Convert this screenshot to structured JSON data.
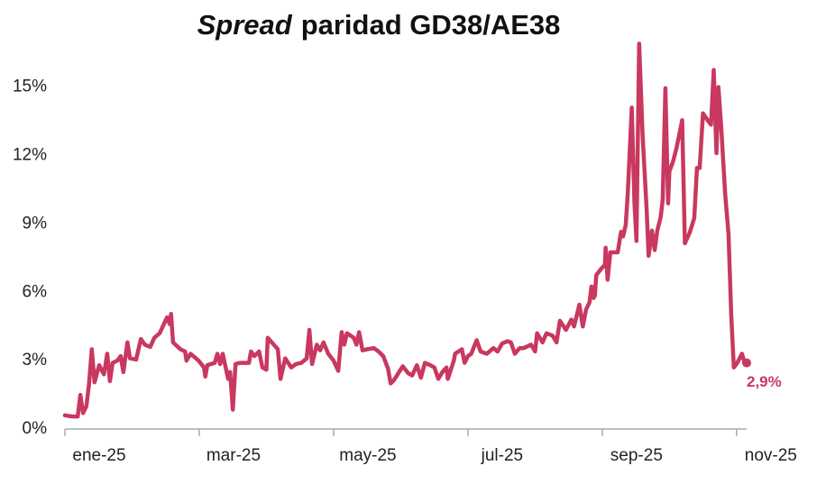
{
  "chart_data": {
    "type": "line",
    "title": {
      "emphasis": "Spread",
      "rest": "paridad GD38/AE38"
    },
    "x": [
      0,
      0.11,
      0.19,
      0.23,
      0.27,
      0.32,
      0.36,
      0.4,
      0.44,
      0.51,
      0.58,
      0.63,
      0.67,
      0.71,
      0.78,
      0.83,
      0.87,
      0.93,
      0.97,
      1.06,
      1.13,
      1.19,
      1.27,
      1.33,
      1.41,
      1.52,
      1.56,
      1.58,
      1.61,
      1.72,
      1.79,
      1.81,
      1.87,
      1.99,
      2.07,
      2.09,
      2.12,
      2.23,
      2.27,
      2.31,
      2.35,
      2.43,
      2.46,
      2.5,
      2.54,
      2.6,
      2.74,
      2.77,
      2.82,
      2.89,
      2.94,
      3.0,
      3.02,
      3.11,
      3.17,
      3.21,
      3.28,
      3.37,
      3.44,
      3.52,
      3.6,
      3.64,
      3.68,
      3.75,
      3.8,
      3.85,
      3.92,
      4.0,
      4.07,
      4.12,
      4.16,
      4.2,
      4.3,
      4.34,
      4.38,
      4.43,
      4.5,
      4.6,
      4.67,
      4.74,
      4.81,
      4.85,
      4.9,
      5.03,
      5.11,
      5.17,
      5.24,
      5.3,
      5.36,
      5.44,
      5.5,
      5.56,
      5.62,
      5.68,
      5.7,
      5.79,
      5.81,
      5.91,
      5.95,
      6.0,
      6.05,
      6.13,
      6.19,
      6.28,
      6.38,
      6.44,
      6.51,
      6.59,
      6.64,
      6.7,
      6.77,
      6.83,
      6.94,
      7.0,
      7.03,
      7.11,
      7.17,
      7.26,
      7.32,
      7.37,
      7.46,
      7.54,
      7.58,
      7.66,
      7.71,
      7.76,
      7.81,
      7.84,
      7.87,
      7.89,
      7.91,
      7.99,
      8.04,
      8.05,
      8.08,
      8.12,
      8.23,
      8.28,
      8.31,
      8.35,
      8.38,
      8.44,
      8.48,
      8.51,
      8.55,
      8.6,
      8.66,
      8.69,
      8.74,
      8.78,
      8.82,
      8.87,
      8.9,
      8.94,
      8.98,
      9.0,
      9.05,
      9.1,
      9.15,
      9.19,
      9.23,
      9.3,
      9.37,
      9.41,
      9.45,
      9.5,
      9.58,
      9.62,
      9.66,
      9.7,
      9.73,
      9.77,
      9.83,
      9.88,
      9.92,
      9.96,
      10.01,
      10.08,
      10.12,
      10.15
    ],
    "series": [
      {
        "name": "Spread",
        "color": "#c9385f",
        "values": [
          0.6,
          0.55,
          0.55,
          1.5,
          0.7,
          1.0,
          2.0,
          3.5,
          2.05,
          2.8,
          2.4,
          3.3,
          2.1,
          2.9,
          3.0,
          3.2,
          2.5,
          3.8,
          3.1,
          3.05,
          3.95,
          3.7,
          3.6,
          4.0,
          4.2,
          4.9,
          4.6,
          5.05,
          3.8,
          3.5,
          3.4,
          3.0,
          3.3,
          3.0,
          2.7,
          2.3,
          2.8,
          2.9,
          3.3,
          2.85,
          3.3,
          2.2,
          2.5,
          0.85,
          2.85,
          2.9,
          2.9,
          3.4,
          3.2,
          3.4,
          2.7,
          2.6,
          4.0,
          3.7,
          3.5,
          2.2,
          3.1,
          2.7,
          2.85,
          2.9,
          3.1,
          4.35,
          2.85,
          3.7,
          3.45,
          3.8,
          3.3,
          3.0,
          2.55,
          4.25,
          3.7,
          4.2,
          4.0,
          3.7,
          4.25,
          3.45,
          3.5,
          3.55,
          3.4,
          3.2,
          2.65,
          2.0,
          2.15,
          2.75,
          2.45,
          2.35,
          2.8,
          2.25,
          2.9,
          2.8,
          2.7,
          2.2,
          2.5,
          2.7,
          2.2,
          3.0,
          3.3,
          3.5,
          2.9,
          3.2,
          3.3,
          3.9,
          3.4,
          3.3,
          3.55,
          3.4,
          3.75,
          3.85,
          3.8,
          3.3,
          3.55,
          3.55,
          3.7,
          3.4,
          4.2,
          3.8,
          4.2,
          4.1,
          3.8,
          4.75,
          4.35,
          4.8,
          4.5,
          5.45,
          4.5,
          5.25,
          5.55,
          6.25,
          5.75,
          5.85,
          6.75,
          7.05,
          7.2,
          7.95,
          6.55,
          7.75,
          7.75,
          8.65,
          8.45,
          8.95,
          10.35,
          14.1,
          9.9,
          8.25,
          16.9,
          12.9,
          9.7,
          7.6,
          8.7,
          7.85,
          8.7,
          9.3,
          10.05,
          14.95,
          9.9,
          11.3,
          11.7,
          12.25,
          12.95,
          13.55,
          8.15,
          8.6,
          9.25,
          11.45,
          11.45,
          13.85,
          13.5,
          13.35,
          15.75,
          12.1,
          15.0,
          13.3,
          10.3,
          8.55,
          5.0,
          2.7,
          2.9,
          3.3,
          2.9,
          2.9
        ]
      }
    ],
    "annotations": [
      {
        "x": 10.15,
        "y": 2.9,
        "label": "2,9%"
      }
    ],
    "xlim": [
      0,
      10.15
    ],
    "xticks": [
      {
        "value": 0,
        "label": "ene-25"
      },
      {
        "value": 2,
        "label": "mar-25"
      },
      {
        "value": 4,
        "label": "may-25"
      },
      {
        "value": 6,
        "label": "jul-25"
      },
      {
        "value": 8,
        "label": "sep-25"
      },
      {
        "value": 10,
        "label": "nov-25"
      }
    ],
    "ylim": [
      0,
      17
    ],
    "yticks": [
      {
        "value": 0,
        "label": "0%"
      },
      {
        "value": 3,
        "label": "3%"
      },
      {
        "value": 6,
        "label": "6%"
      },
      {
        "value": 9,
        "label": "9%"
      },
      {
        "value": 12,
        "label": "12%"
      },
      {
        "value": 15,
        "label": "15%"
      }
    ],
    "grid": false
  }
}
